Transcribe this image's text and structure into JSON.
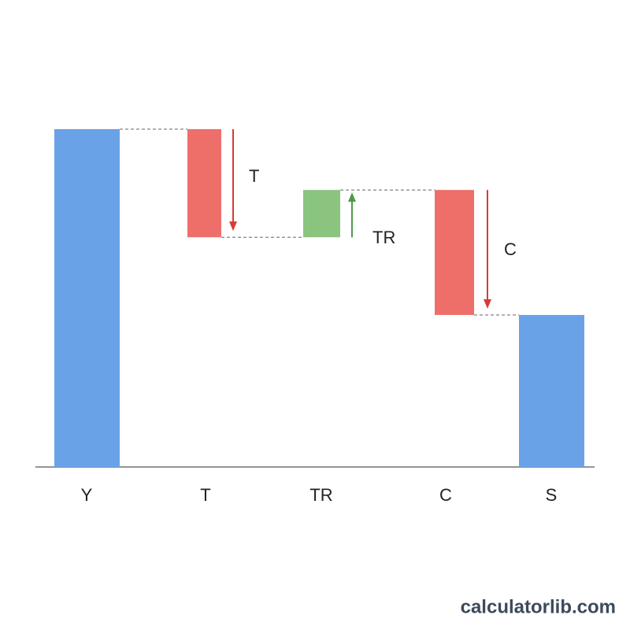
{
  "chart_data": {
    "type": "waterfall",
    "categories": [
      "Y",
      "T",
      "TR",
      "C",
      "S"
    ],
    "values": [
      100,
      -32,
      14,
      -37,
      45
    ],
    "measure": [
      "total",
      "relative",
      "relative",
      "relative",
      "total"
    ],
    "colors": {
      "total": "#6aa2e8",
      "increase": "#8bc47f",
      "decrease": "#ee6e6a"
    },
    "arrow_colors": {
      "increase": "#4f9a45",
      "decrease": "#d93a36"
    },
    "annotations": [
      "T",
      "TR",
      "C"
    ],
    "ylim": [
      0,
      100
    ],
    "watermark": "calculatorlib.com"
  }
}
